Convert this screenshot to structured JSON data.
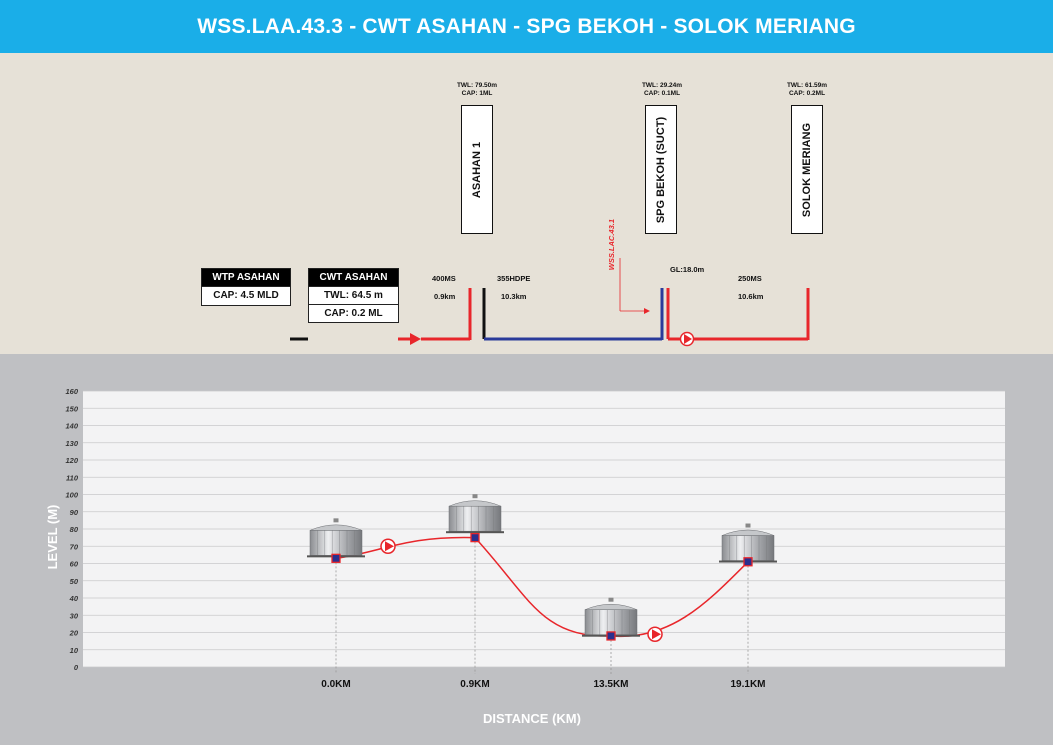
{
  "title": "WSS.LAA.43.3 - CWT ASAHAN - SPG BEKOH - SOLOK MERIANG",
  "schematic": {
    "wtp": {
      "name": "WTP ASAHAN",
      "cap": "CAP: 4.5 MLD"
    },
    "cwt": {
      "name": "CWT ASAHAN",
      "twl": "TWL: 64.5 m",
      "cap": "CAP: 0.2 ML"
    },
    "tanks": [
      {
        "name": "ASAHAN 1",
        "twl": "TWL: 79.50m",
        "cap": "CAP: 1ML"
      },
      {
        "name": "SPG BEKOH (SUCT)",
        "twl": "TWL: 29.24m",
        "cap": "CAP: 0.1ML"
      },
      {
        "name": "SOLOK MERIANG",
        "twl": "TWL: 61.59m",
        "cap": "CAP: 0.2ML"
      }
    ],
    "pipes": [
      {
        "size": "400MS",
        "length": "0.9km"
      },
      {
        "size": "355HDPE",
        "length": "10.3km"
      },
      {
        "size": "250MS",
        "length": "10.6km"
      }
    ],
    "gl": "GL:18.0m",
    "branch": "WSS.LAC.43.1",
    "colors": {
      "header": "#1aaee8",
      "pumped_main": "#e8262b",
      "gravity_main": "#2a3a9a"
    }
  },
  "chart_data": {
    "type": "line",
    "ylabel": "LEVEL (M)",
    "xlabel": "DISTANCE (KM)",
    "ylim": [
      0,
      160
    ],
    "yticks": [
      "0",
      "10",
      "20",
      "30",
      "40",
      "50",
      "60",
      "70",
      "80",
      "90",
      "100",
      "110",
      "120",
      "130",
      "140",
      "150",
      "160"
    ],
    "grid": true,
    "x_labels": [
      "0.0KM",
      "0.9KM",
      "13.5KM",
      "19.1KM"
    ],
    "stations": [
      {
        "x_label": "0.0KM",
        "level": 63,
        "tank_level": 74
      },
      {
        "x_label": "0.9KM",
        "level": 75,
        "tank_level": 88
      },
      {
        "x_label": "13.5KM",
        "level": 18,
        "tank_level": 28
      },
      {
        "x_label": "19.1KM",
        "level": 61,
        "tank_level": 71
      }
    ],
    "pumps": [
      {
        "between": [
          "0.0KM",
          "0.9KM"
        ],
        "level": 70
      },
      {
        "between": [
          "13.5KM",
          "19.1KM"
        ],
        "level": 19
      }
    ]
  }
}
